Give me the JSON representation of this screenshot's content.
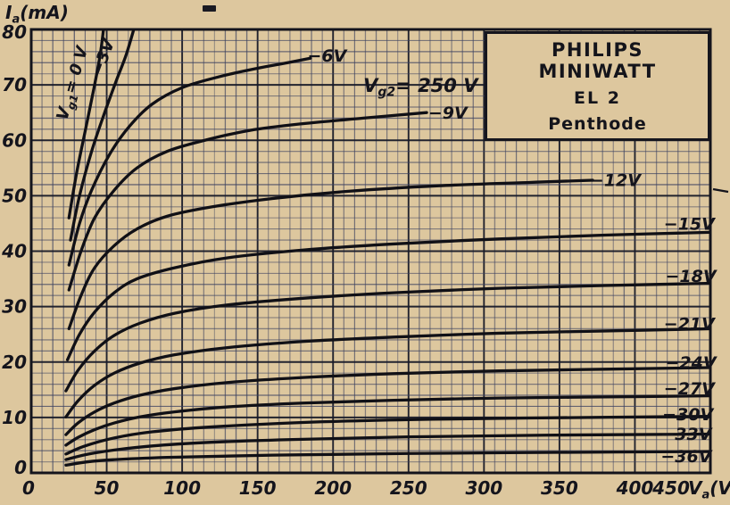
{
  "page": {
    "background": "#ddc79e",
    "ink": "#14141c",
    "grid_minor_color": "#3b4160",
    "grid_major_color": "#171a28",
    "curve_color": "#101016"
  },
  "title_box": {
    "line1": "PHILIPS MINIWATT",
    "line2": "EL 2",
    "line3": "Penthode"
  },
  "chart_data": {
    "type": "line",
    "title": "PHILIPS MINIWATT EL 2 Penthode",
    "xlabel": {
      "pre": "V",
      "sub": "a",
      "post": "(V)"
    },
    "ylabel": {
      "pre": "I",
      "sub": "a",
      "post": "(mA)"
    },
    "xlim": [
      0,
      450
    ],
    "ylim": [
      0,
      80
    ],
    "grid": "on",
    "legend": "none",
    "x_ticks": [
      {
        "label": "0",
        "v": 0,
        "dx": -3
      },
      {
        "label": "50",
        "v": 50
      },
      {
        "label": "100",
        "v": 100
      },
      {
        "label": "150",
        "v": 150
      },
      {
        "label": "200",
        "v": 200
      },
      {
        "label": "250",
        "v": 250
      },
      {
        "label": "300",
        "v": 300
      },
      {
        "label": "350",
        "v": 350
      },
      {
        "label": "400",
        "v": 400
      },
      {
        "label": "450",
        "v": 450,
        "dx": -44
      }
    ],
    "y_ticks": [
      {
        "label": "0",
        "v": 0,
        "dy": -6
      },
      {
        "label": "10",
        "v": 10
      },
      {
        "label": "20",
        "v": 20
      },
      {
        "label": "30",
        "v": 30
      },
      {
        "label": "40",
        "v": 40
      },
      {
        "label": "50",
        "v": 50
      },
      {
        "label": "60",
        "v": 60
      },
      {
        "label": "70",
        "v": 70
      },
      {
        "label": "80",
        "v": 80,
        "dy": 3
      }
    ],
    "annotations": [
      {
        "id": "screen-grid-voltage",
        "pre": "V",
        "sub": "g2",
        "post": "= 250 V",
        "x": 258,
        "y": 69.7,
        "rot": 0,
        "size": 21
      }
    ],
    "series": [
      {
        "vg1": "0 V",
        "label": {
          "pre": "V",
          "sub": "g1",
          "post": "= 0 V"
        },
        "label_x": 30.5,
        "label_y": 71,
        "label_rot": -74,
        "label_size": 18,
        "points": [
          [
            25,
            46
          ],
          [
            30,
            54
          ],
          [
            36,
            62
          ],
          [
            42,
            70
          ],
          [
            46,
            76
          ],
          [
            48.5,
            81.5
          ]
        ]
      },
      {
        "vg1": "−3 V",
        "label": {
          "text": "−3V"
        },
        "label_x": 51,
        "label_y": 75.6,
        "label_rot": -70,
        "label_size": 18,
        "points": [
          [
            26,
            42
          ],
          [
            32,
            50
          ],
          [
            40,
            58
          ],
          [
            48,
            64.5
          ],
          [
            56,
            70.5
          ],
          [
            63,
            75.5
          ],
          [
            69.5,
            81.5
          ]
        ]
      },
      {
        "vg1": "−6 V",
        "label": {
          "text": "−6V"
        },
        "label_x": 196,
        "label_y": 75.2,
        "label_rot": 0,
        "points": [
          [
            25,
            37.5
          ],
          [
            32,
            45
          ],
          [
            40,
            51
          ],
          [
            52,
            57.5
          ],
          [
            65,
            62.5
          ],
          [
            80,
            66.5
          ],
          [
            100,
            69.5
          ],
          [
            125,
            71.5
          ],
          [
            150,
            73
          ],
          [
            170,
            74
          ],
          [
            185,
            74.8
          ]
        ]
      },
      {
        "vg1": "−9 V",
        "label": {
          "text": "−9V"
        },
        "label_x": 276,
        "label_y": 64.9,
        "label_rot": 0,
        "points": [
          [
            25,
            33
          ],
          [
            33,
            40
          ],
          [
            42,
            46
          ],
          [
            55,
            51
          ],
          [
            70,
            55
          ],
          [
            90,
            58
          ],
          [
            115,
            60
          ],
          [
            145,
            61.8
          ],
          [
            180,
            63
          ],
          [
            220,
            64
          ],
          [
            262,
            65
          ]
        ]
      },
      {
        "vg1": "−12 V",
        "label": {
          "text": "−12V"
        },
        "label_x": 387,
        "label_y": 52.7,
        "label_rot": 0,
        "points": [
          [
            25,
            26
          ],
          [
            33,
            32
          ],
          [
            42,
            37
          ],
          [
            55,
            41
          ],
          [
            70,
            44
          ],
          [
            90,
            46.3
          ],
          [
            120,
            48
          ],
          [
            160,
            49.5
          ],
          [
            210,
            50.8
          ],
          [
            270,
            51.8
          ],
          [
            330,
            52.4
          ],
          [
            372,
            52.8
          ]
        ]
      },
      {
        "vg1": "−15 V",
        "label": {
          "text": "−15V"
        },
        "label_x": 436,
        "label_y": 44.8,
        "label_rot": 0,
        "points": [
          [
            24,
            20.4
          ],
          [
            32,
            25
          ],
          [
            42,
            29
          ],
          [
            55,
            32.5
          ],
          [
            70,
            35
          ],
          [
            95,
            37
          ],
          [
            130,
            38.8
          ],
          [
            180,
            40.2
          ],
          [
            240,
            41.3
          ],
          [
            310,
            42.2
          ],
          [
            380,
            42.9
          ],
          [
            450,
            43.4
          ]
        ]
      },
      {
        "vg1": "−18 V",
        "label": {
          "text": "−18V"
        },
        "label_x": 437,
        "label_y": 35.4,
        "label_rot": 0,
        "points": [
          [
            23,
            14.8
          ],
          [
            31,
            18.5
          ],
          [
            42,
            22
          ],
          [
            55,
            24.8
          ],
          [
            72,
            27
          ],
          [
            95,
            28.8
          ],
          [
            130,
            30.3
          ],
          [
            180,
            31.5
          ],
          [
            240,
            32.5
          ],
          [
            310,
            33.3
          ],
          [
            380,
            33.8
          ],
          [
            450,
            34.2
          ]
        ]
      },
      {
        "vg1": "−21 V",
        "label": {
          "text": "−21V"
        },
        "label_x": 436,
        "label_y": 26.8,
        "label_rot": 0,
        "points": [
          [
            23,
            10.1
          ],
          [
            31,
            13
          ],
          [
            42,
            15.8
          ],
          [
            55,
            18
          ],
          [
            72,
            19.8
          ],
          [
            95,
            21.3
          ],
          [
            130,
            22.6
          ],
          [
            180,
            23.7
          ],
          [
            240,
            24.5
          ],
          [
            310,
            25.2
          ],
          [
            380,
            25.6
          ],
          [
            450,
            26
          ]
        ]
      },
      {
        "vg1": "−24 V",
        "label": {
          "text": "−24V"
        },
        "label_x": 437,
        "label_y": 19.8,
        "label_rot": 0,
        "points": [
          [
            23,
            6.9
          ],
          [
            31,
            9
          ],
          [
            42,
            11
          ],
          [
            55,
            12.6
          ],
          [
            72,
            14
          ],
          [
            95,
            15.2
          ],
          [
            130,
            16.3
          ],
          [
            180,
            17.2
          ],
          [
            240,
            17.9
          ],
          [
            310,
            18.4
          ],
          [
            380,
            18.7
          ],
          [
            450,
            19
          ]
        ]
      },
      {
        "vg1": "−27 V",
        "label": {
          "text": "−27V"
        },
        "label_x": 436,
        "label_y": 15.1,
        "label_rot": 0,
        "points": [
          [
            23,
            5
          ],
          [
            31,
            6.4
          ],
          [
            42,
            7.8
          ],
          [
            55,
            9
          ],
          [
            72,
            10.1
          ],
          [
            95,
            11
          ],
          [
            130,
            11.9
          ],
          [
            180,
            12.6
          ],
          [
            240,
            13.1
          ],
          [
            310,
            13.5
          ],
          [
            380,
            13.7
          ],
          [
            450,
            13.9
          ]
        ]
      },
      {
        "vg1": "−30 V",
        "label": {
          "text": "−30V"
        },
        "label_x": 435,
        "label_y": 10.5,
        "label_rot": 0,
        "points": [
          [
            23,
            3.4
          ],
          [
            35,
            4.8
          ],
          [
            55,
            6.3
          ],
          [
            80,
            7.4
          ],
          [
            120,
            8.3
          ],
          [
            180,
            9.1
          ],
          [
            250,
            9.6
          ],
          [
            330,
            9.9
          ],
          [
            450,
            10.2
          ]
        ]
      },
      {
        "vg1": "−33 V",
        "label": {
          "text": "−33V"
        },
        "label_x": 434,
        "label_y": 6.9,
        "label_rot": 0,
        "points": [
          [
            23,
            2.4
          ],
          [
            40,
            3.5
          ],
          [
            70,
            4.6
          ],
          [
            110,
            5.4
          ],
          [
            170,
            6
          ],
          [
            250,
            6.5
          ],
          [
            340,
            6.8
          ],
          [
            450,
            7
          ]
        ]
      },
      {
        "vg1": "−36 V",
        "label": {
          "text": "−36V"
        },
        "label_x": 434,
        "label_y": 2.9,
        "label_rot": 0,
        "points": [
          [
            23,
            1.4
          ],
          [
            45,
            2.2
          ],
          [
            90,
            2.8
          ],
          [
            160,
            3.2
          ],
          [
            250,
            3.5
          ],
          [
            350,
            3.7
          ],
          [
            450,
            3.85
          ]
        ]
      }
    ]
  }
}
